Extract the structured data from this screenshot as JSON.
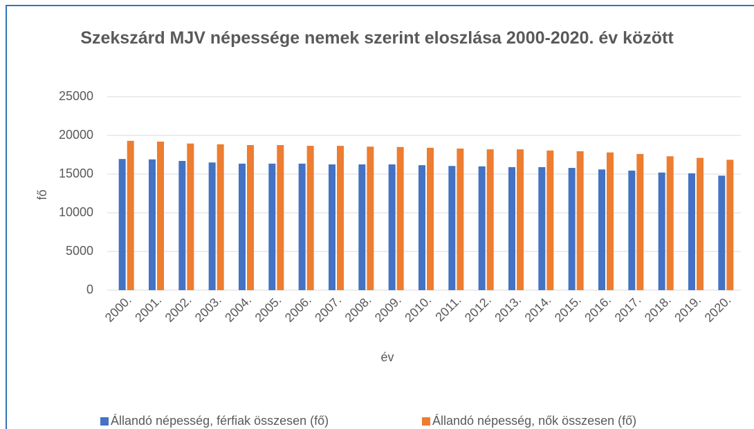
{
  "chart_data": {
    "type": "bar",
    "title": "Szekszárd MJV népessége nemek szerint eloszlása 2000-2020. év között",
    "x_label": "év",
    "y_label": "fő",
    "categories": [
      "2000.",
      "2001.",
      "2002.",
      "2003.",
      "2004.",
      "2005.",
      "2006.",
      "2007.",
      "2008.",
      "2009.",
      "2010.",
      "2011.",
      "2012.",
      "2013.",
      "2014.",
      "2015.",
      "2016.",
      "2017.",
      "2018.",
      "2019.",
      "2020."
    ],
    "series": [
      {
        "name": "Állandó népesség, férfiak összesen (fő)",
        "color": "#4472c4",
        "values": [
          16950,
          16900,
          16700,
          16500,
          16350,
          16350,
          16350,
          16250,
          16250,
          16250,
          16150,
          16050,
          16000,
          15900,
          15900,
          15800,
          15600,
          15450,
          15200,
          15100,
          14800
        ]
      },
      {
        "name": "Állandó népesség, nők összesen (fő)",
        "color": "#ed7d31",
        "values": [
          19300,
          19200,
          18950,
          18850,
          18750,
          18750,
          18650,
          18650,
          18550,
          18500,
          18400,
          18300,
          18200,
          18200,
          18050,
          17950,
          17800,
          17600,
          17300,
          17100,
          16850
        ]
      }
    ],
    "ylim": [
      0,
      25000
    ],
    "yticks": [
      0,
      5000,
      10000,
      15000,
      20000,
      25000
    ],
    "grid": true,
    "legend": "bottom"
  }
}
